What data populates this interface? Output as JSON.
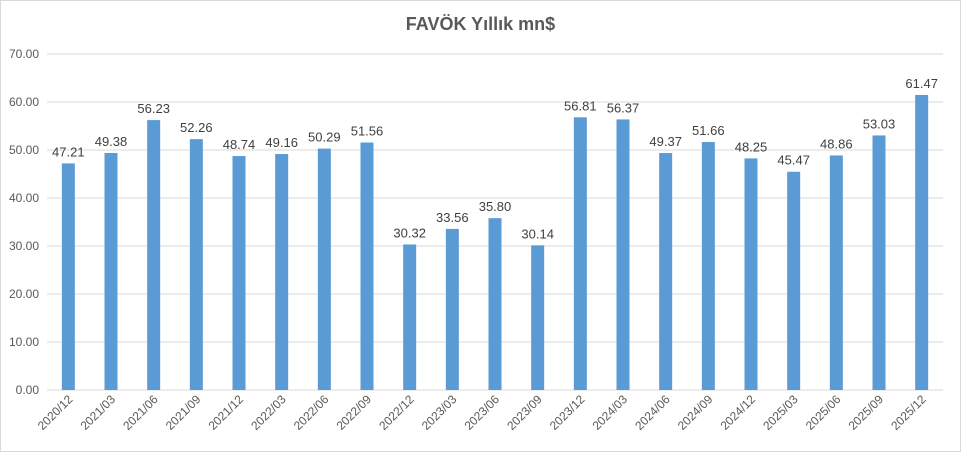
{
  "chart_data": {
    "type": "bar",
    "title": "FAVÖK Yıllık mn$",
    "xlabel": "",
    "ylabel": "",
    "ylim": [
      0,
      70
    ],
    "yticks": [
      "0.00",
      "10.00",
      "20.00",
      "30.00",
      "40.00",
      "50.00",
      "60.00",
      "70.00"
    ],
    "grid": true,
    "legend": "none",
    "bar_color": "#5b9bd5",
    "categories": [
      "2020/12",
      "2021/03",
      "2021/06",
      "2021/09",
      "2021/12",
      "2022/03",
      "2022/06",
      "2022/09",
      "2022/12",
      "2023/03",
      "2023/06",
      "2023/09",
      "2023/12",
      "2024/03",
      "2024/06",
      "2024/09",
      "2024/12",
      "2025/03",
      "2025/06",
      "2025/09",
      "2025/12"
    ],
    "values": [
      47.21,
      49.38,
      56.23,
      52.26,
      48.74,
      49.16,
      50.29,
      51.56,
      30.32,
      33.56,
      35.8,
      30.14,
      56.81,
      56.37,
      49.37,
      51.66,
      48.25,
      45.47,
      48.86,
      53.03,
      61.47
    ],
    "labels": [
      "47.21",
      "49.38",
      "56.23",
      "52.26",
      "48.74",
      "49.16",
      "50.29",
      "51.56",
      "30.32",
      "33.56",
      "35.80",
      "30.14",
      "56.81",
      "56.37",
      "49.37",
      "51.66",
      "48.25",
      "45.47",
      "48.86",
      "53.03",
      "61.47"
    ]
  }
}
